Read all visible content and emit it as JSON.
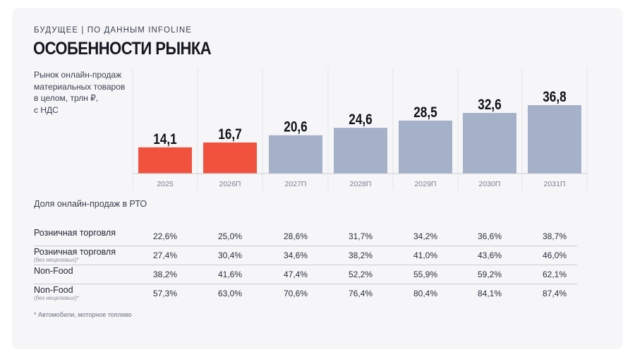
{
  "header": {
    "kicker": "БУДУЩЕЕ | ПО ДАННЫМ INFOLINE",
    "title": "ОСОБЕННОСТИ РЫНКА"
  },
  "chart_data": {
    "type": "bar",
    "title": "Рынок онлайн-продаж\nматериальных товаров\nв целом, трлн ₽,\nс НДС",
    "categories": [
      "2025",
      "2026П",
      "2027П",
      "2028П",
      "2029П",
      "2030П",
      "2031П"
    ],
    "values": [
      14.1,
      16.7,
      20.6,
      24.6,
      28.5,
      32.6,
      36.8
    ],
    "value_labels": [
      "14,1",
      "16,7",
      "20,6",
      "24,6",
      "28,5",
      "32,6",
      "36,8"
    ],
    "bar_colors": [
      "#f0523e",
      "#f0523e",
      "#a5b0c9",
      "#a5b0c9",
      "#a5b0c9",
      "#a5b0c9",
      "#a5b0c9"
    ],
    "xlabel": "",
    "ylabel": "",
    "ylim": [
      0,
      40
    ],
    "grid": "vertical separators"
  },
  "share_table": {
    "label": "Доля онлайн-продаж в РТО",
    "rows": [
      {
        "label": "Розничная торговля",
        "note": "",
        "values": [
          "22,6%",
          "25,0%",
          "28,6%",
          "31,7%",
          "34,2%",
          "36,6%",
          "38,7%"
        ]
      },
      {
        "label": "Розничная торговля",
        "note": "(без нецелевых)*",
        "values": [
          "27,4%",
          "30,4%",
          "34,6%",
          "38,2%",
          "41,0%",
          "43,6%",
          "46,0%"
        ]
      },
      {
        "label": "Non-Food",
        "note": "",
        "values": [
          "38,2%",
          "41,6%",
          "47,4%",
          "52,2%",
          "55,9%",
          "59,2%",
          "62,1%"
        ]
      },
      {
        "label": "Non-Food",
        "note": "(без нецелевых)*",
        "values": [
          "57,3%",
          "63,0%",
          "70,6%",
          "76,4%",
          "80,4%",
          "84,1%",
          "87,4%"
        ]
      }
    ]
  },
  "footnote": "* Автомобили, моторное топливо"
}
